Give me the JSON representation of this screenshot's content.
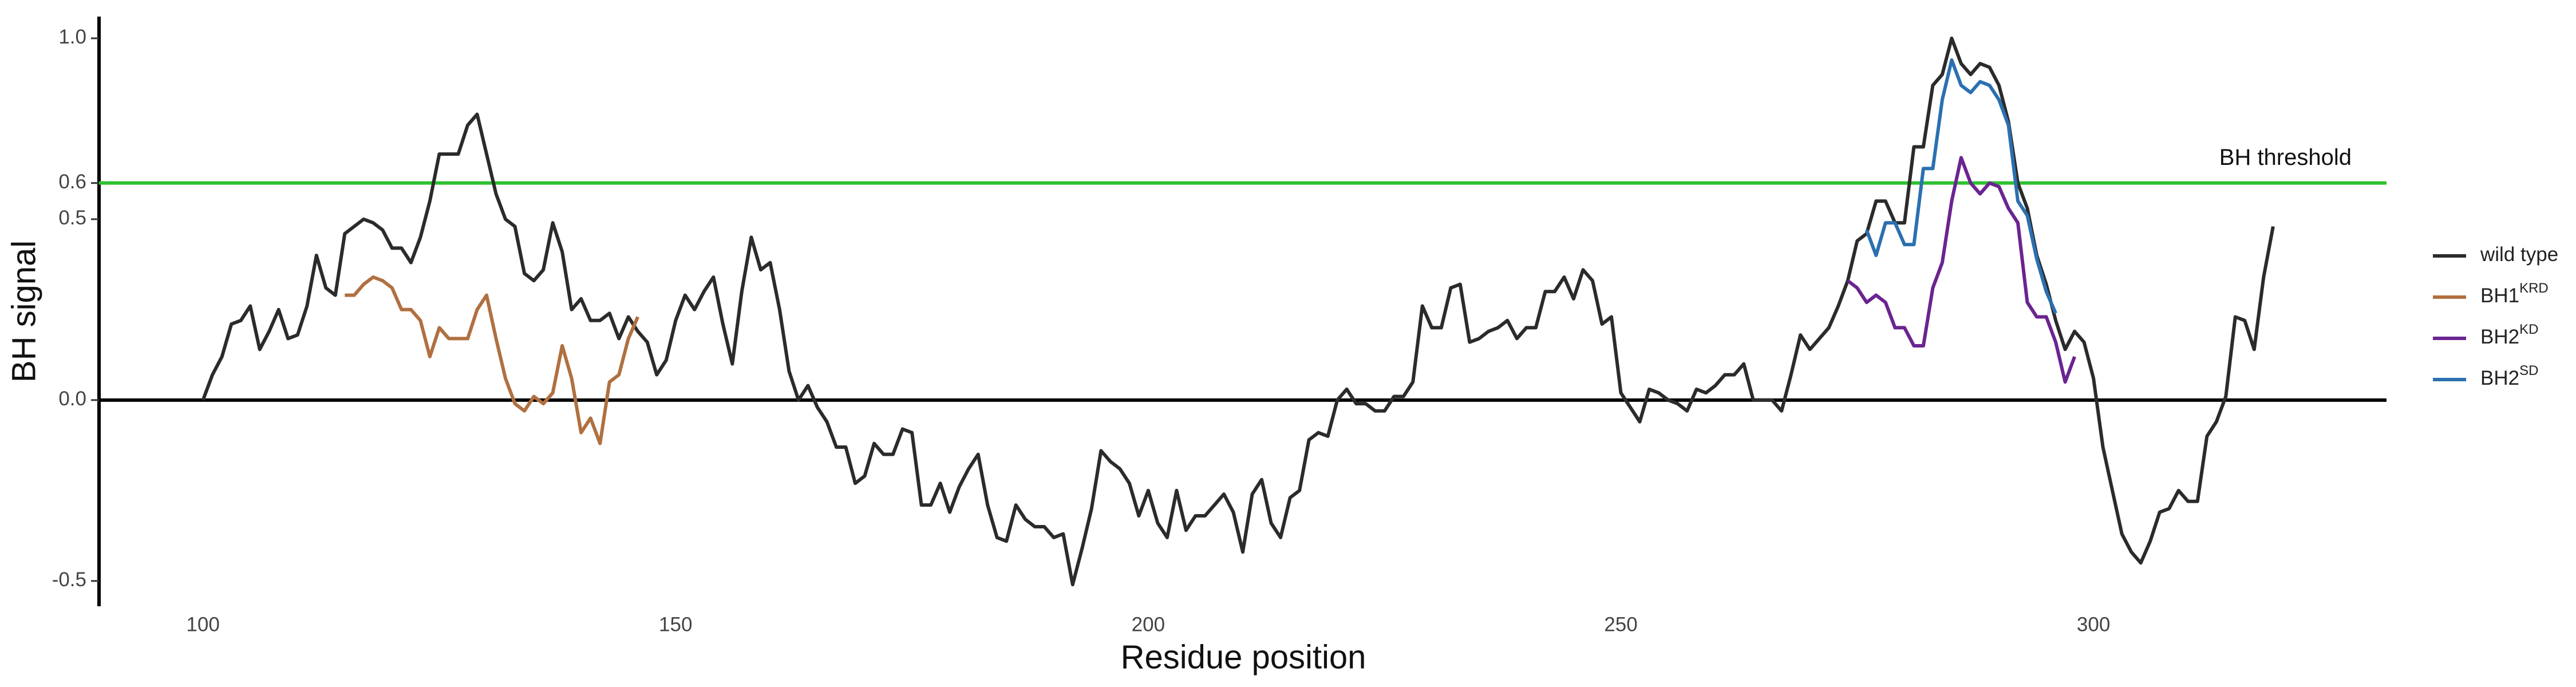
{
  "chart_data": {
    "type": "line",
    "x_label": "Residue position",
    "y_label": "BH signal",
    "xlim": [
      89,
      331
    ],
    "ylim": [
      -0.57,
      1.06
    ],
    "xticks": [
      100,
      150,
      200,
      250,
      300
    ],
    "yticks": [
      -0.5,
      {
        "value": 0,
        "label": "0.0"
      },
      0.5,
      0.6,
      {
        "value": 1,
        "label": "1.0"
      }
    ],
    "reference_lines": [
      {
        "value": 0,
        "color": "#000000"
      },
      {
        "value": 0.6,
        "color": "#2ec22e",
        "label": "BH threshold"
      }
    ],
    "series": [
      {
        "name": "wild type",
        "color": "#2b2b2b",
        "x": [
          100,
          101,
          102,
          103,
          104,
          105,
          106,
          107,
          108,
          109,
          110,
          111,
          112,
          113,
          114,
          115,
          116,
          117,
          118,
          119,
          120,
          121,
          122,
          123,
          124,
          125,
          126,
          127,
          128,
          129,
          130,
          131,
          132,
          133,
          134,
          135,
          136,
          137,
          138,
          139,
          140,
          141,
          142,
          143,
          144,
          145,
          146,
          147,
          148,
          149,
          150,
          151,
          152,
          153,
          154,
          155,
          156,
          157,
          158,
          159,
          160,
          161,
          162,
          163,
          164,
          165,
          166,
          167,
          168,
          169,
          170,
          171,
          172,
          173,
          174,
          175,
          176,
          177,
          178,
          179,
          180,
          181,
          182,
          183,
          184,
          185,
          186,
          187,
          188,
          189,
          190,
          191,
          192,
          193,
          194,
          195,
          196,
          197,
          198,
          199,
          200,
          201,
          202,
          203,
          204,
          205,
          206,
          207,
          208,
          209,
          210,
          211,
          212,
          213,
          214,
          215,
          216,
          217,
          218,
          219,
          220,
          221,
          222,
          223,
          224,
          225,
          226,
          227,
          228,
          229,
          230,
          231,
          232,
          233,
          234,
          235,
          236,
          237,
          238,
          239,
          240,
          241,
          242,
          243,
          244,
          245,
          246,
          247,
          248,
          249,
          250,
          251,
          252,
          253,
          254,
          255,
          256,
          257,
          258,
          259,
          260,
          261,
          262,
          263,
          264,
          265,
          266,
          267,
          268,
          269,
          270,
          271,
          272,
          273,
          274,
          275,
          276,
          277,
          278,
          279,
          280,
          281,
          282,
          283,
          284,
          285,
          286,
          287,
          288,
          289,
          290,
          291,
          292,
          293,
          294,
          295,
          296,
          297,
          298,
          299,
          300,
          301,
          302,
          303,
          304,
          305,
          306,
          307,
          308,
          309,
          310,
          311,
          312,
          313,
          314,
          315,
          316,
          317,
          318,
          319
        ],
        "values": [
          0.0,
          0.07,
          0.12,
          0.21,
          0.22,
          0.26,
          0.14,
          0.19,
          0.25,
          0.17,
          0.18,
          0.26,
          0.4,
          0.31,
          0.29,
          0.46,
          0.48,
          0.5,
          0.49,
          0.47,
          0.42,
          0.42,
          0.38,
          0.45,
          0.55,
          0.68,
          0.68,
          0.68,
          0.76,
          0.79,
          0.68,
          0.57,
          0.5,
          0.48,
          0.35,
          0.33,
          0.36,
          0.49,
          0.41,
          0.25,
          0.28,
          0.22,
          0.22,
          0.24,
          0.17,
          0.23,
          0.19,
          0.16,
          0.07,
          0.11,
          0.22,
          0.29,
          0.25,
          0.3,
          0.34,
          0.21,
          0.1,
          0.3,
          0.45,
          0.36,
          0.38,
          0.25,
          0.08,
          0.0,
          0.04,
          -0.02,
          -0.06,
          -0.13,
          -0.13,
          -0.23,
          -0.21,
          -0.12,
          -0.15,
          -0.15,
          -0.08,
          -0.09,
          -0.29,
          -0.29,
          -0.23,
          -0.31,
          -0.24,
          -0.19,
          -0.15,
          -0.29,
          -0.38,
          -0.39,
          -0.29,
          -0.33,
          -0.35,
          -0.35,
          -0.38,
          -0.37,
          -0.51,
          -0.41,
          -0.3,
          -0.14,
          -0.17,
          -0.19,
          -0.23,
          -0.32,
          -0.25,
          -0.34,
          -0.38,
          -0.25,
          -0.36,
          -0.32,
          -0.32,
          -0.29,
          -0.26,
          -0.31,
          -0.42,
          -0.26,
          -0.22,
          -0.34,
          -0.38,
          -0.27,
          -0.25,
          -0.11,
          -0.09,
          -0.1,
          0.0,
          0.03,
          -0.01,
          -0.01,
          -0.03,
          -0.03,
          0.01,
          0.01,
          0.05,
          0.26,
          0.2,
          0.2,
          0.31,
          0.32,
          0.16,
          0.17,
          0.19,
          0.2,
          0.22,
          0.17,
          0.2,
          0.2,
          0.3,
          0.3,
          0.34,
          0.28,
          0.36,
          0.33,
          0.21,
          0.23,
          0.02,
          -0.02,
          -0.06,
          0.03,
          0.02,
          0.0,
          -0.01,
          -0.03,
          0.03,
          0.02,
          0.04,
          0.07,
          0.07,
          0.1,
          0.0,
          0.0,
          0.0,
          -0.03,
          0.07,
          0.18,
          0.14,
          0.17,
          0.2,
          0.26,
          0.33,
          0.44,
          0.46,
          0.55,
          0.55,
          0.49,
          0.49,
          0.7,
          0.7,
          0.87,
          0.9,
          1.0,
          0.93,
          0.9,
          0.93,
          0.92,
          0.87,
          0.77,
          0.6,
          0.53,
          0.4,
          0.32,
          0.22,
          0.14,
          0.19,
          0.16,
          0.06,
          -0.13,
          -0.25,
          -0.37,
          -0.42,
          -0.45,
          -0.39,
          -0.31,
          -0.3,
          -0.25,
          -0.28,
          -0.28,
          -0.1,
          -0.06,
          0.01,
          0.23,
          0.22,
          0.14,
          0.34,
          0.48
        ]
      },
      {
        "name": "BH1",
        "superscript": "KRD",
        "color": "#b07040",
        "x": [
          115,
          116,
          117,
          118,
          119,
          120,
          121,
          122,
          123,
          124,
          125,
          126,
          127,
          128,
          129,
          130,
          131,
          132,
          133,
          134,
          135,
          136,
          137,
          138,
          139,
          140,
          141,
          142,
          143,
          144,
          145,
          146
        ],
        "values": [
          0.29,
          0.29,
          0.32,
          0.34,
          0.33,
          0.31,
          0.25,
          0.25,
          0.22,
          0.12,
          0.2,
          0.17,
          0.17,
          0.17,
          0.25,
          0.29,
          0.17,
          0.06,
          -0.01,
          -0.03,
          0.01,
          -0.01,
          0.02,
          0.15,
          0.06,
          -0.09,
          -0.05,
          -0.12,
          0.05,
          0.07,
          0.17,
          0.23
        ]
      },
      {
        "name": "BH2",
        "superscript": "KD",
        "color": "#6a2490",
        "x": [
          274,
          275,
          276,
          277,
          278,
          279,
          280,
          281,
          282,
          283,
          284,
          285,
          286,
          287,
          288,
          289,
          290,
          291,
          292,
          293,
          294,
          295,
          296,
          297,
          298
        ],
        "values": [
          0.33,
          0.31,
          0.27,
          0.29,
          0.27,
          0.2,
          0.2,
          0.15,
          0.15,
          0.31,
          0.38,
          0.55,
          0.67,
          0.6,
          0.57,
          0.6,
          0.59,
          0.53,
          0.49,
          0.27,
          0.23,
          0.23,
          0.16,
          0.05,
          0.12
        ]
      },
      {
        "name": "BH2",
        "superscript": "SD",
        "color": "#2b70b0",
        "x": [
          276,
          277,
          278,
          279,
          280,
          281,
          282,
          283,
          284,
          285,
          286,
          287,
          288,
          289,
          290,
          291,
          292,
          293,
          294,
          295,
          296
        ],
        "values": [
          0.47,
          0.4,
          0.49,
          0.49,
          0.43,
          0.43,
          0.64,
          0.64,
          0.83,
          0.94,
          0.87,
          0.85,
          0.88,
          0.87,
          0.83,
          0.76,
          0.55,
          0.51,
          0.39,
          0.3,
          0.24
        ]
      }
    ]
  }
}
